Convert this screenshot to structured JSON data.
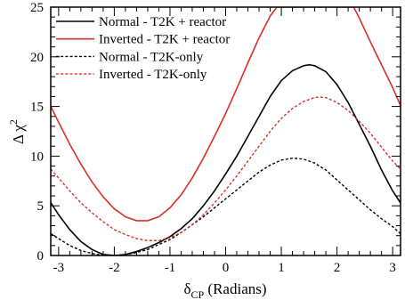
{
  "chart_data": {
    "type": "line",
    "xlabel": "δ",
    "xlabel_sub": "CP",
    "xlabel_suffix": " (Radians)",
    "ylabel": "Δ χ",
    "ylabel_sup": "2",
    "xlim": [
      -3.14159,
      3.14159
    ],
    "ylim": [
      0,
      25
    ],
    "xticks": [
      -3,
      -2,
      -1,
      0,
      1,
      2,
      3
    ],
    "yticks": [
      0,
      5,
      10,
      15,
      20,
      25
    ],
    "legend_position": "top-left",
    "series": [
      {
        "name": "Normal - T2K + reactor",
        "color": "#000000",
        "dash": "solid",
        "x": [
          -3.14,
          -3.0,
          -2.8,
          -2.6,
          -2.4,
          -2.2,
          -2.0,
          -1.8,
          -1.6,
          -1.4,
          -1.2,
          -1.0,
          -0.8,
          -0.6,
          -0.4,
          -0.2,
          0.0,
          0.2,
          0.4,
          0.6,
          0.8,
          1.0,
          1.2,
          1.4,
          1.5,
          1.6,
          1.8,
          2.0,
          2.2,
          2.4,
          2.6,
          2.8,
          3.0,
          3.14
        ],
        "y": [
          5.3,
          4.1,
          2.6,
          1.4,
          0.6,
          0.1,
          0.0,
          0.1,
          0.4,
          0.8,
          1.3,
          1.9,
          2.7,
          3.7,
          5.0,
          6.5,
          8.2,
          10.0,
          12.0,
          14.0,
          16.0,
          17.6,
          18.6,
          19.1,
          19.2,
          19.1,
          18.5,
          17.2,
          15.4,
          13.2,
          11.0,
          8.6,
          6.5,
          5.3
        ]
      },
      {
        "name": "Inverted - T2K + reactor",
        "color": "#d6312b",
        "dash": "solid",
        "x": [
          -3.14,
          -3.0,
          -2.8,
          -2.6,
          -2.4,
          -2.2,
          -2.0,
          -1.8,
          -1.6,
          -1.4,
          -1.2,
          -1.0,
          -0.8,
          -0.6,
          -0.4,
          -0.2,
          0.0,
          0.2,
          0.4,
          0.6,
          0.8,
          0.92,
          2.3,
          2.4,
          2.6,
          2.8,
          3.0,
          3.14
        ],
        "y": [
          15.0,
          13.4,
          11.2,
          9.2,
          7.4,
          5.9,
          4.7,
          3.9,
          3.5,
          3.5,
          3.9,
          4.8,
          6.1,
          7.8,
          9.8,
          12.0,
          14.3,
          16.8,
          19.4,
          21.9,
          24.1,
          25.0,
          25.0,
          23.9,
          21.5,
          19.2,
          16.9,
          15.1
        ]
      },
      {
        "name": "Normal - T2K-only",
        "color": "#000000",
        "dash": "dashed",
        "x": [
          -3.14,
          -3.0,
          -2.8,
          -2.6,
          -2.4,
          -2.2,
          -2.0,
          -1.8,
          -1.6,
          -1.4,
          -1.2,
          -1.0,
          -0.8,
          -0.6,
          -0.4,
          -0.2,
          0.0,
          0.2,
          0.4,
          0.6,
          0.8,
          1.0,
          1.2,
          1.4,
          1.6,
          1.8,
          2.0,
          2.2,
          2.4,
          2.6,
          2.8,
          3.0,
          3.14
        ],
        "y": [
          2.2,
          1.7,
          1.0,
          0.5,
          0.2,
          0.0,
          0.0,
          0.1,
          0.3,
          0.6,
          1.1,
          1.6,
          2.3,
          3.1,
          3.9,
          4.8,
          5.7,
          6.6,
          7.5,
          8.4,
          9.1,
          9.6,
          9.8,
          9.7,
          9.3,
          8.6,
          7.6,
          6.6,
          5.6,
          4.6,
          3.7,
          2.9,
          2.2
        ]
      },
      {
        "name": "Inverted - T2K-only",
        "color": "#d6312b",
        "dash": "dashed",
        "x": [
          -3.14,
          -3.0,
          -2.8,
          -2.6,
          -2.4,
          -2.2,
          -2.0,
          -1.8,
          -1.6,
          -1.4,
          -1.2,
          -1.0,
          -0.8,
          -0.6,
          -0.4,
          -0.2,
          0.0,
          0.2,
          0.4,
          0.6,
          0.8,
          1.0,
          1.2,
          1.4,
          1.6,
          1.7,
          1.8,
          2.0,
          2.2,
          2.4,
          2.6,
          2.8,
          3.0,
          3.14
        ],
        "y": [
          8.7,
          7.8,
          6.5,
          5.3,
          4.3,
          3.4,
          2.6,
          2.1,
          1.7,
          1.5,
          1.5,
          1.8,
          2.3,
          3.1,
          4.1,
          5.3,
          6.6,
          8.0,
          9.5,
          11.0,
          12.5,
          13.8,
          14.8,
          15.5,
          15.9,
          15.95,
          15.9,
          15.4,
          14.6,
          13.5,
          12.3,
          10.9,
          9.5,
          8.7
        ]
      }
    ]
  }
}
